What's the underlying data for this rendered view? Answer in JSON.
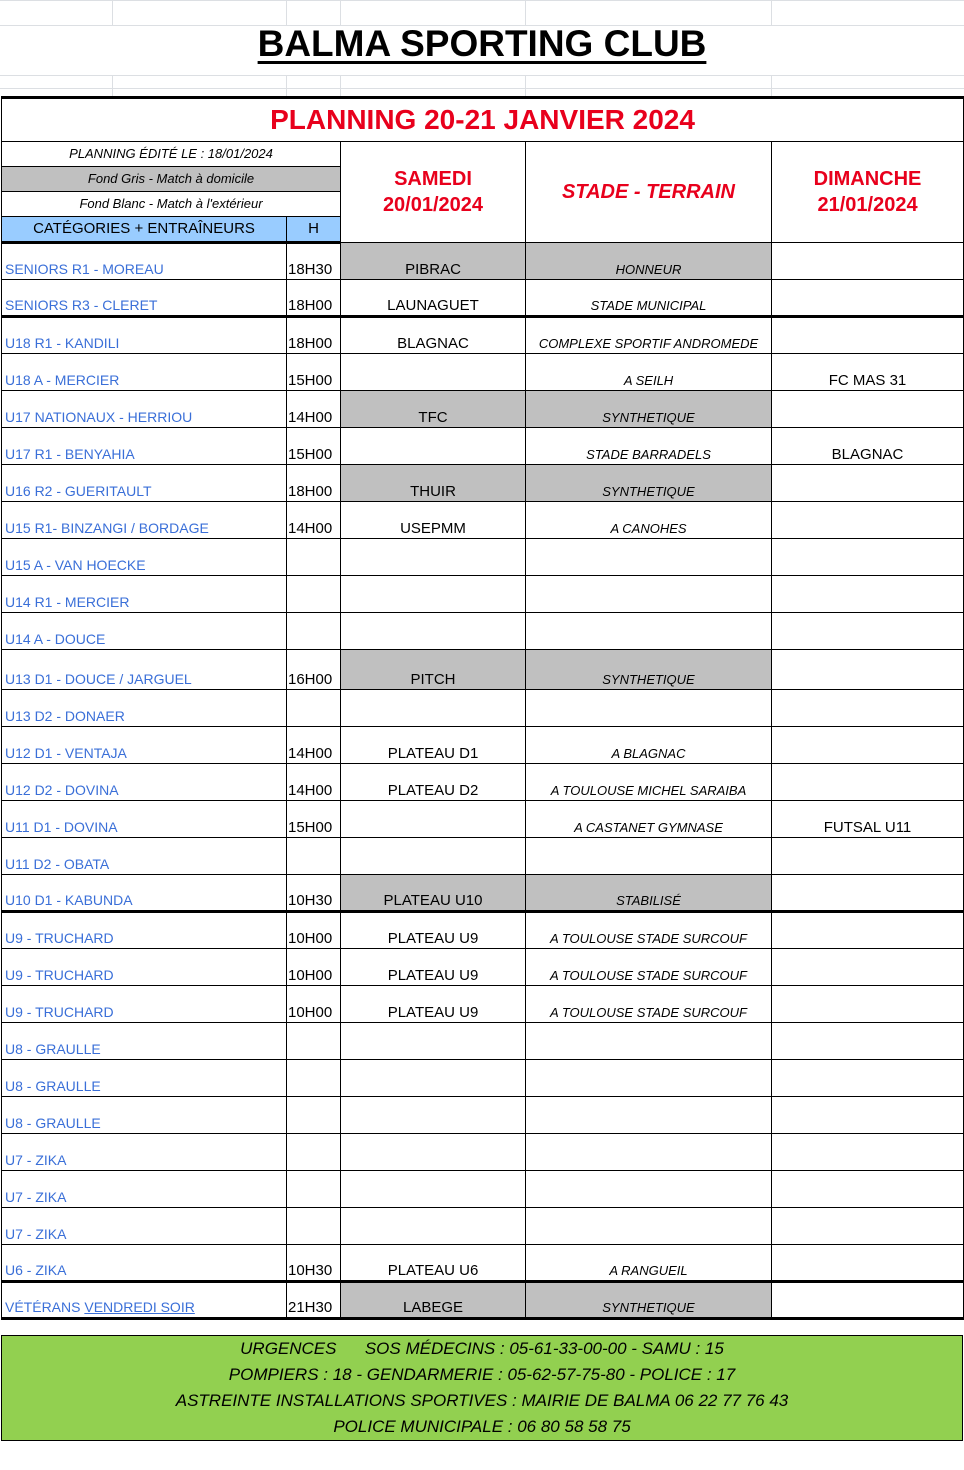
{
  "club_name": "BALMA SPORTING CLUB",
  "planning_title": "PLANNING 20-21 JANVIER 2024",
  "edited": "PLANNING ÉDITÉ LE : 18/01/2024",
  "legend_gray": "Fond Gris - Match à domicile",
  "legend_white": "Fond Blanc - Match à l'extérieur",
  "col_category": "CATÉGORIES + ENTRAÎNEURS",
  "col_hour": "H",
  "saturday": {
    "day": "SAMEDI",
    "date": "20/01/2024"
  },
  "stade_header": "STADE - TERRAIN",
  "sunday": {
    "day": "DIMANCHE",
    "date": "21/01/2024"
  },
  "colors": {
    "accent_red": "#e8001c",
    "category_blue": "#3a6fd8",
    "home_gray": "#c0c0c0",
    "header_blue": "#99ccff",
    "footer_green": "#92d050"
  },
  "rows": [
    {
      "category": "SENIORS R1 - MOREAU",
      "hour": "18H30",
      "opponent": "PIBRAC",
      "terrain": "HONNEUR",
      "sunday": "",
      "home": true
    },
    {
      "category": "SENIORS R3 - CLERET",
      "hour": "18H00",
      "opponent": "LAUNAGUET",
      "terrain": "STADE MUNICIPAL",
      "sunday": "",
      "home": false
    },
    {
      "category": "U18 R1 - KANDILI",
      "hour": "18H00",
      "opponent": "BLAGNAC",
      "terrain": "COMPLEXE SPORTIF ANDROMEDE",
      "sunday": "",
      "home": false
    },
    {
      "category": "U18 A - MERCIER",
      "hour": "15H00",
      "opponent": "",
      "terrain": "A SEILH",
      "sunday": "FC MAS 31",
      "home": false
    },
    {
      "category": "U17 NATIONAUX - HERRIOU",
      "hour": "14H00",
      "opponent": "TFC",
      "terrain": "SYNTHETIQUE",
      "sunday": "",
      "home": true
    },
    {
      "category": "U17 R1 - BENYAHIA",
      "hour": "15H00",
      "opponent": "",
      "terrain": "STADE BARRADELS",
      "sunday": "BLAGNAC",
      "home": false
    },
    {
      "category": "U16 R2 - GUERITAULT",
      "hour": "18H00",
      "opponent": "THUIR",
      "terrain": "SYNTHETIQUE",
      "sunday": "",
      "home": true
    },
    {
      "category": "U15 R1- BINZANGI / BORDAGE",
      "hour": "14H00",
      "opponent": "USEPMM",
      "terrain": "A CANOHES",
      "sunday": "",
      "home": false
    },
    {
      "category": "U15 A - VAN HOECKE",
      "hour": "",
      "opponent": "",
      "terrain": "",
      "sunday": "",
      "home": false
    },
    {
      "category": "U14 R1 - MERCIER",
      "hour": "",
      "opponent": "",
      "terrain": "",
      "sunday": "",
      "home": false
    },
    {
      "category": "U14 A - DOUCE",
      "hour": "",
      "opponent": "",
      "terrain": "",
      "sunday": "",
      "home": false
    },
    {
      "category": "U13 D1 - DOUCE / JARGUEL",
      "hour": "16H00",
      "opponent": "PITCH",
      "terrain": "SYNTHETIQUE",
      "sunday": "",
      "home": true
    },
    {
      "category": "U13 D2 - DONAER",
      "hour": "",
      "opponent": "",
      "terrain": "",
      "sunday": "",
      "home": false
    },
    {
      "category": "U12 D1 - VENTAJA",
      "hour": "14H00",
      "opponent": "PLATEAU D1",
      "terrain": "A BLAGNAC",
      "sunday": "",
      "home": false
    },
    {
      "category": "U12 D2 - DOVINA",
      "hour": "14H00",
      "opponent": "PLATEAU D2",
      "terrain": "A TOULOUSE MICHEL SARAIBA",
      "sunday": "",
      "home": false
    },
    {
      "category": "U11 D1 - DOVINA",
      "hour": "15H00",
      "opponent": "",
      "terrain": "A CASTANET GYMNASE",
      "sunday": "FUTSAL U11",
      "home": false
    },
    {
      "category": "U11 D2 - OBATA",
      "hour": "",
      "opponent": "",
      "terrain": "",
      "sunday": "",
      "home": false
    },
    {
      "category": "U10 D1 - KABUNDA",
      "hour": "10H30",
      "opponent": "PLATEAU U10",
      "terrain": "STABILISÉ",
      "sunday": "",
      "home": true
    },
    {
      "category": "U9 - TRUCHARD",
      "hour": "10H00",
      "opponent": "PLATEAU U9",
      "terrain": "A TOULOUSE STADE SURCOUF",
      "sunday": "",
      "home": false
    },
    {
      "category": "U9 - TRUCHARD",
      "hour": "10H00",
      "opponent": "PLATEAU U9",
      "terrain": "A TOULOUSE STADE SURCOUF",
      "sunday": "",
      "home": false
    },
    {
      "category": "U9 - TRUCHARD",
      "hour": "10H00",
      "opponent": "PLATEAU U9",
      "terrain": "A TOULOUSE STADE SURCOUF",
      "sunday": "",
      "home": false
    },
    {
      "category": "U8 - GRAULLE",
      "hour": "",
      "opponent": "",
      "terrain": "",
      "sunday": "",
      "home": false
    },
    {
      "category": "U8 - GRAULLE",
      "hour": "",
      "opponent": "",
      "terrain": "",
      "sunday": "",
      "home": false
    },
    {
      "category": "U8 - GRAULLE",
      "hour": "",
      "opponent": "",
      "terrain": "",
      "sunday": "",
      "home": false
    },
    {
      "category": "U7 - ZIKA",
      "hour": "",
      "opponent": "",
      "terrain": "",
      "sunday": "",
      "home": false
    },
    {
      "category": "U7 - ZIKA",
      "hour": "",
      "opponent": "",
      "terrain": "",
      "sunday": "",
      "home": false
    },
    {
      "category": "U7 - ZIKA",
      "hour": "",
      "opponent": "",
      "terrain": "",
      "sunday": "",
      "home": false
    },
    {
      "category": "U6 - ZIKA",
      "hour": "10H30",
      "opponent": "PLATEAU U6",
      "terrain": "A RANGUEIL",
      "sunday": "",
      "home": false
    }
  ],
  "veterans": {
    "label": "VÉTÉRANS",
    "link": "VENDREDI SOIR",
    "hour": "21H30",
    "opponent": "LABEGE",
    "terrain": "SYNTHETIQUE",
    "home": true
  },
  "emergency": [
    "URGENCES      SOS MÉDECINS : 05-61-33-00-00 - SAMU : 15",
    "POMPIERS : 18 - GENDARMERIE : 05-62-57-75-80 - POLICE : 17",
    "ASTREINTE INSTALLATIONS SPORTIVES : MAIRIE DE BALMA 06 22 77 76 43",
    "POLICE MUNICIPALE : 06 80 58 58 75"
  ]
}
